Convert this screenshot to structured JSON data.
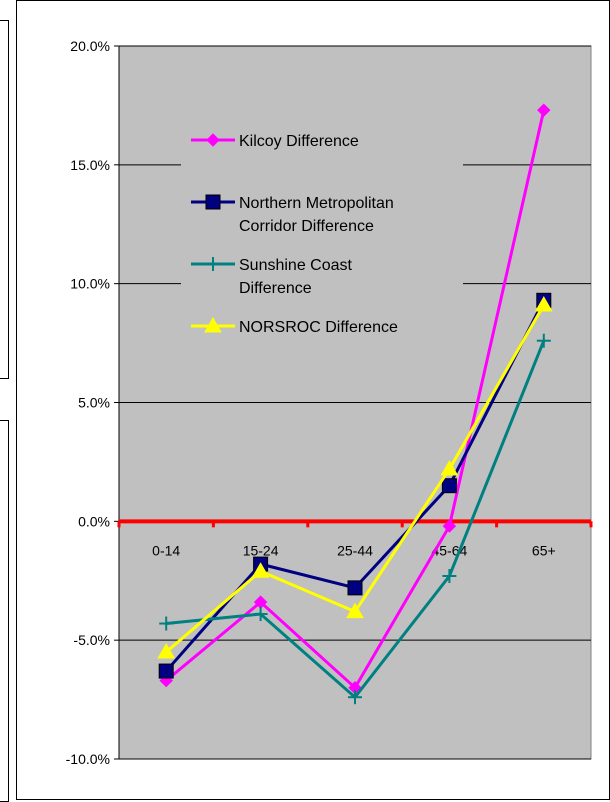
{
  "chart_data": {
    "type": "line",
    "title": "",
    "xlabel": "",
    "ylabel": "",
    "categories": [
      "0-14",
      "15-24",
      "25-44",
      "45-64",
      "65+"
    ],
    "ylim": [
      -0.1,
      0.2
    ],
    "yticks": [
      0.2,
      0.15,
      0.1,
      0.05,
      0.0,
      -0.05,
      -0.1
    ],
    "ytick_labels": [
      "20.0%",
      "15.0%",
      "10.0%",
      "5.0%",
      "0.0%",
      "-5.0%",
      "-10.0%"
    ],
    "grid": true,
    "plot_background": "#c0c0c0",
    "zero_line_color": "#ff0000",
    "legend_position": "upper-left inside plot",
    "series": [
      {
        "name": "Kilcoy Difference",
        "color": "#ff00ff",
        "marker": "diamond",
        "values": [
          -0.067,
          -0.034,
          -0.07,
          -0.002,
          0.173
        ]
      },
      {
        "name": "Northern Metropolitan Corridor Difference",
        "color": "#000080",
        "marker": "square",
        "values": [
          -0.063,
          -0.018,
          -0.028,
          0.015,
          0.093
        ]
      },
      {
        "name": "Sunshine Coast Difference",
        "color": "#008080",
        "marker": "plus",
        "values": [
          -0.043,
          -0.039,
          -0.074,
          -0.023,
          0.076
        ]
      },
      {
        "name": "NORSROC Difference",
        "color": "#ffff00",
        "marker": "triangle",
        "values": [
          -0.055,
          -0.021,
          -0.038,
          0.022,
          0.091
        ]
      }
    ],
    "legend_lines": [
      [
        "Kilcoy Difference"
      ],
      [
        "Northern Metropolitan",
        "Corridor Difference"
      ],
      [
        "Sunshine Coast",
        "Difference"
      ],
      [
        "NORSROC Difference"
      ]
    ]
  }
}
